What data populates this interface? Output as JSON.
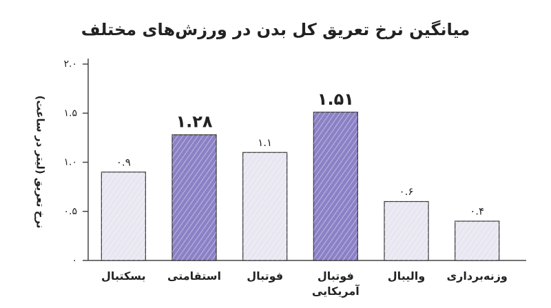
{
  "chart_data": {
    "type": "bar",
    "title": "میانگین نرخ تعریق کل بدن در ورزش‌های مختلف",
    "y_label": "نرخ تعریق (لیتر در ساعت)",
    "categories": [
      "بسکتبال",
      "استقامتی",
      "فوتبال",
      "فوتبال آمریکایی",
      "والیبال",
      "وزنه‌برداری"
    ],
    "values": [
      0.9,
      1.28,
      1.1,
      1.51,
      0.6,
      0.4
    ],
    "value_labels": [
      "۰.۹",
      "۱.۲۸",
      "۱.۱",
      "۱.۵۱",
      "۰.۶",
      "۰.۴"
    ],
    "colors": [
      "#e8e6f1",
      "#8b81c6",
      "#e8e6f1",
      "#8b81c6",
      "#e8e6f1",
      "#e8e6f1"
    ],
    "bold_labels": [
      false,
      true,
      false,
      true,
      false,
      false
    ],
    "ylim": [
      0,
      2
    ],
    "yticks": [
      {
        "value": 0,
        "label": "۰"
      },
      {
        "value": 0.5,
        "label": "۰.۵"
      },
      {
        "value": 1,
        "label": "۱.۰"
      },
      {
        "value": 1.5,
        "label": "۱.۵"
      },
      {
        "value": 2,
        "label": "۲.۰"
      }
    ]
  }
}
